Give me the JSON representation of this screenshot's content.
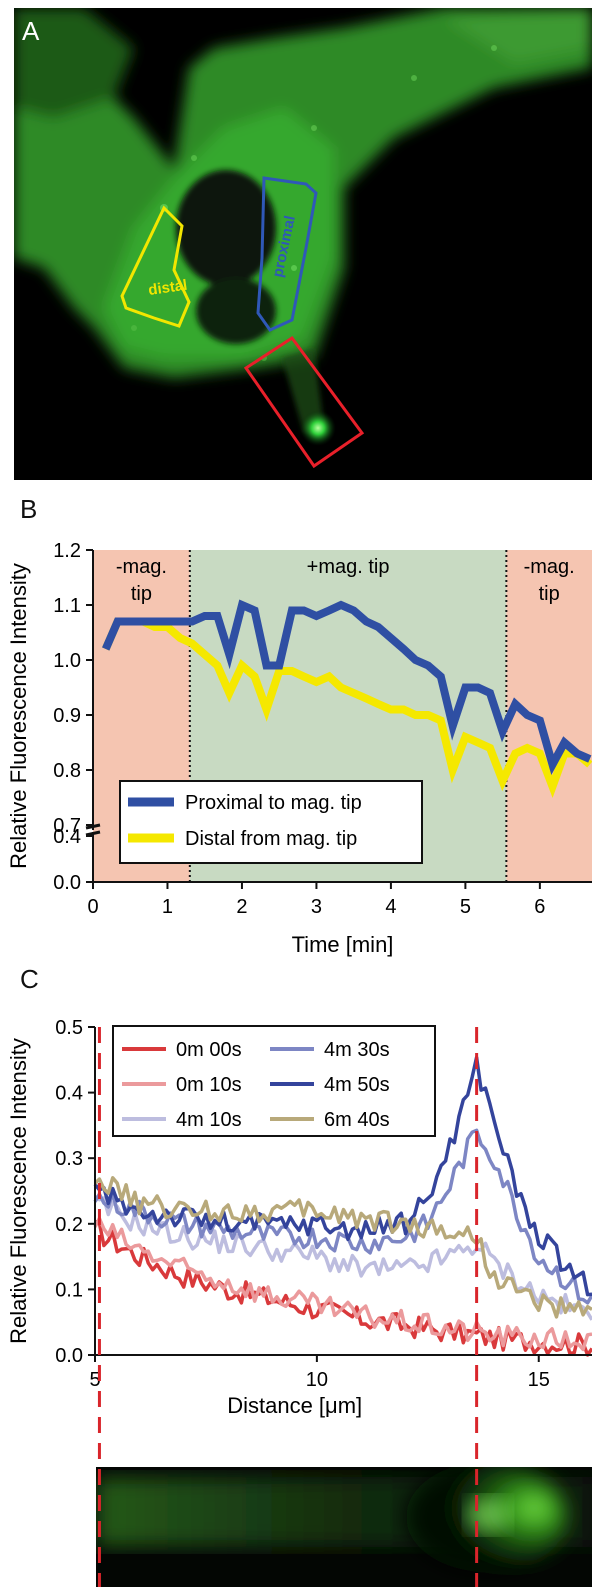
{
  "panels": {
    "a": {
      "letter": "A",
      "roi_labels": {
        "distal": "distal",
        "proximal": "proximal"
      },
      "colors": {
        "distal": "#f2e600",
        "proximal": "#2f58b8",
        "needle_box": "#e8202a"
      }
    },
    "b": {
      "letter": "B"
    },
    "c": {
      "letter": "C"
    }
  },
  "chart_data": [
    {
      "type": "line",
      "panel": "B",
      "xlabel": "Time [min]",
      "ylabel": "Relative Fluorescence Intensity",
      "xlim": [
        0,
        6.7
      ],
      "ylim": [
        0,
        1.2
      ],
      "axis_break": [
        0.4,
        0.7
      ],
      "x_ticks": [
        0,
        1,
        2,
        3,
        4,
        5,
        6
      ],
      "y_ticks": [
        0.0,
        0.4,
        0.7,
        0.8,
        0.9,
        1.0,
        1.1,
        1.2
      ],
      "y_tick_labels": [
        "0.0",
        "0.4",
        "0.7",
        "0.8",
        "0.9",
        "1.0",
        "1.1",
        "1.2"
      ],
      "regions": [
        {
          "from": 0,
          "to": 1.3,
          "label_line1": "-mag.",
          "label_line2": "tip",
          "color": "#f5c5b1"
        },
        {
          "from": 1.3,
          "to": 5.55,
          "label_line1": "+mag. tip",
          "label_line2": "",
          "color": "#c8dac2"
        },
        {
          "from": 5.55,
          "to": 6.7,
          "label_line1": "-mag.",
          "label_line2": "tip",
          "color": "#f5c5b1"
        }
      ],
      "legend_position": "bottom-left",
      "series": [
        {
          "name": "Proximal to mag. tip",
          "color": "#2f4fa3",
          "x": [
            0.17,
            0.33,
            0.5,
            0.67,
            0.83,
            1.0,
            1.17,
            1.33,
            1.5,
            1.67,
            1.83,
            2.0,
            2.17,
            2.33,
            2.5,
            2.67,
            2.83,
            3.0,
            3.17,
            3.33,
            3.5,
            3.67,
            3.83,
            4.0,
            4.17,
            4.33,
            4.5,
            4.67,
            4.83,
            5.0,
            5.17,
            5.33,
            5.5,
            5.67,
            5.83,
            6.0,
            6.17,
            6.33,
            6.5,
            6.67
          ],
          "y": [
            1.02,
            1.07,
            1.07,
            1.07,
            1.07,
            1.07,
            1.07,
            1.07,
            1.08,
            1.08,
            1.01,
            1.1,
            1.09,
            0.99,
            0.99,
            1.09,
            1.09,
            1.08,
            1.09,
            1.1,
            1.09,
            1.07,
            1.06,
            1.04,
            1.02,
            1.0,
            0.99,
            0.97,
            0.88,
            0.95,
            0.95,
            0.94,
            0.87,
            0.92,
            0.9,
            0.89,
            0.81,
            0.85,
            0.83,
            0.82
          ]
        },
        {
          "name": "Distal from mag. tip",
          "color": "#f5e800",
          "x": [
            0.17,
            0.33,
            0.5,
            0.67,
            0.83,
            1.0,
            1.17,
            1.33,
            1.5,
            1.67,
            1.83,
            2.0,
            2.17,
            2.33,
            2.5,
            2.67,
            2.83,
            3.0,
            3.17,
            3.33,
            3.5,
            3.67,
            3.83,
            4.0,
            4.17,
            4.33,
            4.5,
            4.67,
            4.83,
            5.0,
            5.17,
            5.33,
            5.5,
            5.67,
            5.83,
            6.0,
            6.17,
            6.33,
            6.5,
            6.67
          ],
          "y": [
            1.02,
            1.07,
            1.07,
            1.07,
            1.06,
            1.06,
            1.04,
            1.03,
            1.01,
            0.99,
            0.94,
            0.99,
            0.97,
            0.91,
            0.98,
            0.98,
            0.97,
            0.96,
            0.97,
            0.95,
            0.94,
            0.93,
            0.92,
            0.91,
            0.91,
            0.9,
            0.9,
            0.89,
            0.8,
            0.86,
            0.85,
            0.84,
            0.78,
            0.83,
            0.84,
            0.83,
            0.77,
            0.83,
            0.83,
            0.81
          ]
        }
      ]
    },
    {
      "type": "line",
      "panel": "C",
      "xlabel": "Distance [μm]",
      "ylabel": "Relative Fluorescence Intensity",
      "xlim": [
        5,
        16.2
      ],
      "ylim": [
        0,
        0.5
      ],
      "x_ticks": [
        5,
        10,
        15
      ],
      "y_ticks": [
        0.0,
        0.1,
        0.2,
        0.3,
        0.4,
        0.5
      ],
      "y_tick_labels": [
        "0.0",
        "0.1",
        "0.2",
        "0.3",
        "0.4",
        "0.5"
      ],
      "reference_lines_x": [
        5.1,
        13.6
      ],
      "reference_line_color": "#d9252b",
      "legend_position": "top-left",
      "legend_columns": 2,
      "series": [
        {
          "name": "0m 00s",
          "color": "#d9393b",
          "x": [
            5,
            6,
            7,
            8,
            9,
            10,
            11,
            12,
            13,
            13.6,
            14,
            15,
            16.2
          ],
          "y": [
            0.19,
            0.15,
            0.12,
            0.1,
            0.085,
            0.07,
            0.055,
            0.045,
            0.035,
            0.03,
            0.025,
            0.02,
            0.015
          ]
        },
        {
          "name": "0m 10s",
          "color": "#eb9a9c",
          "x": [
            5,
            6,
            7,
            8,
            9,
            10,
            11,
            12,
            13,
            13.6,
            14,
            15,
            16.2
          ],
          "y": [
            0.2,
            0.16,
            0.13,
            0.11,
            0.09,
            0.075,
            0.06,
            0.05,
            0.04,
            0.035,
            0.03,
            0.025,
            0.02
          ]
        },
        {
          "name": "4m 10s",
          "color": "#bdbddf",
          "x": [
            5,
            6,
            7,
            8,
            9,
            10,
            11,
            12,
            13,
            13.6,
            14,
            15,
            16.2
          ],
          "y": [
            0.23,
            0.2,
            0.18,
            0.17,
            0.16,
            0.15,
            0.13,
            0.13,
            0.15,
            0.17,
            0.14,
            0.09,
            0.06
          ]
        },
        {
          "name": "4m 30s",
          "color": "#7d86c4",
          "x": [
            5,
            6,
            7,
            8,
            9,
            10,
            11,
            12,
            12.5,
            13,
            13.6,
            14,
            14.5,
            15,
            16.2
          ],
          "y": [
            0.24,
            0.22,
            0.2,
            0.19,
            0.18,
            0.18,
            0.17,
            0.18,
            0.2,
            0.26,
            0.34,
            0.3,
            0.22,
            0.15,
            0.08
          ]
        },
        {
          "name": "4m 50s",
          "color": "#34449c",
          "x": [
            5,
            6,
            7,
            8,
            9,
            10,
            11,
            12,
            12.5,
            13,
            13.6,
            14,
            14.5,
            15,
            16.2
          ],
          "y": [
            0.25,
            0.22,
            0.21,
            0.2,
            0.2,
            0.2,
            0.19,
            0.2,
            0.24,
            0.32,
            0.44,
            0.36,
            0.25,
            0.18,
            0.1
          ]
        },
        {
          "name": "6m 40s",
          "color": "#b8a97a",
          "x": [
            5,
            6,
            7,
            8,
            9,
            10,
            11,
            12,
            13,
            13.6,
            14,
            15,
            16.2
          ],
          "y": [
            0.27,
            0.23,
            0.22,
            0.22,
            0.22,
            0.22,
            0.21,
            0.2,
            0.19,
            0.18,
            0.12,
            0.08,
            0.06
          ]
        }
      ]
    }
  ]
}
